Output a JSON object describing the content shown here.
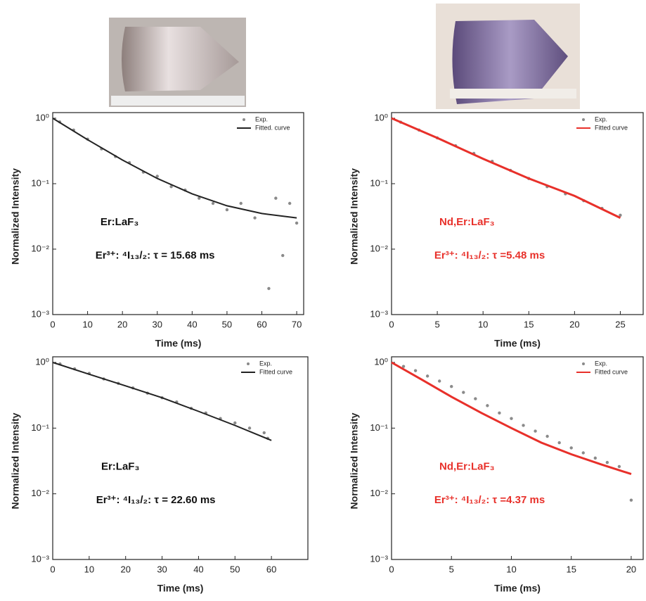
{
  "chart_data": [
    {
      "type": "scatter-fit",
      "xlabel": "Time (ms)",
      "ylabel": "Normalized Intensity",
      "xlim": [
        0,
        72
      ],
      "xticks": [
        0,
        10,
        20,
        30,
        40,
        50,
        60,
        70
      ],
      "ylim": [
        0.001,
        1
      ],
      "ylog": true,
      "yticks": [
        {
          "value": 1,
          "label": "10⁰"
        },
        {
          "value": 0.1,
          "label": "10⁻¹"
        },
        {
          "value": 0.01,
          "label": "10⁻²"
        },
        {
          "value": 0.001,
          "label": "10⁻³"
        }
      ],
      "legend": "top-right",
      "annotation_color": "#111111",
      "annotations": [
        "Er:LaF₃",
        "Er³⁺: ⁴I₁₃/₂: τ = 15.68 ms"
      ],
      "series": [
        {
          "name": "Exp.",
          "kind": "scatter",
          "color": "#8a8a8a",
          "x": [
            2,
            6,
            10,
            14,
            18,
            22,
            26,
            30,
            34,
            38,
            42,
            46,
            50,
            54,
            58,
            62,
            64,
            66,
            68,
            70
          ],
          "values": [
            0.88,
            0.66,
            0.48,
            0.34,
            0.26,
            0.21,
            0.15,
            0.13,
            0.09,
            0.08,
            0.06,
            0.05,
            0.04,
            0.05,
            0.03,
            0.0025,
            0.06,
            0.008,
            0.05,
            0.025
          ]
        },
        {
          "name": "Fitted. curve",
          "kind": "line",
          "color": "#222222",
          "x": [
            0,
            10,
            20,
            30,
            40,
            50,
            60,
            70
          ],
          "values": [
            1,
            0.47,
            0.23,
            0.12,
            0.07,
            0.046,
            0.035,
            0.03
          ]
        }
      ]
    },
    {
      "type": "scatter-fit",
      "xlabel": "Time (ms)",
      "ylabel": "Normalized Intensity",
      "xlim": [
        0,
        27.5
      ],
      "xticks": [
        0,
        5,
        10,
        15,
        20,
        25
      ],
      "ylim": [
        0.001,
        1
      ],
      "ylog": true,
      "yticks": [
        {
          "value": 1,
          "label": "10⁰"
        },
        {
          "value": 0.1,
          "label": "10⁻¹"
        },
        {
          "value": 0.01,
          "label": "10⁻²"
        },
        {
          "value": 0.001,
          "label": "10⁻³"
        }
      ],
      "legend": "top-right",
      "annotation_color": "#e8302a",
      "annotations": [
        "Nd,Er:LaF₃",
        "Er³⁺: ⁴I₁₃/₂: τ =5.48 ms"
      ],
      "series": [
        {
          "name": "Exp.",
          "kind": "scatter",
          "color": "#8a8a8a",
          "x": [
            1,
            3,
            5,
            7,
            9,
            11,
            13,
            15,
            17,
            19,
            21,
            23,
            25
          ],
          "values": [
            0.87,
            0.66,
            0.5,
            0.38,
            0.29,
            0.22,
            0.16,
            0.12,
            0.09,
            0.07,
            0.055,
            0.042,
            0.033
          ]
        },
        {
          "name": "Fitted curve",
          "kind": "line",
          "color": "#e8302a",
          "x": [
            0,
            5,
            10,
            15,
            20,
            25
          ],
          "values": [
            1,
            0.5,
            0.24,
            0.12,
            0.065,
            0.03
          ]
        }
      ]
    },
    {
      "type": "scatter-fit",
      "xlabel": "Time (ms)",
      "ylabel": "Normalized Intensity",
      "xlim": [
        0,
        70
      ],
      "xticks": [
        0,
        10,
        20,
        30,
        40,
        50,
        60
      ],
      "ylim": [
        0.001,
        1
      ],
      "ylog": true,
      "yticks": [
        {
          "value": 1,
          "label": "10⁰"
        },
        {
          "value": 0.1,
          "label": "10⁻¹"
        },
        {
          "value": 0.01,
          "label": "10⁻²"
        },
        {
          "value": 0.001,
          "label": "10⁻³"
        }
      ],
      "legend": "top-right",
      "annotation_color": "#111111",
      "annotations": [
        "Er:LaF₃",
        "Er³⁺: ⁴I₁₃/₂: τ = 22.60 ms"
      ],
      "series": [
        {
          "name": "Exp.",
          "kind": "scatter",
          "color": "#8a8a8a",
          "x": [
            2,
            6,
            10,
            14,
            18,
            22,
            26,
            30,
            34,
            38,
            42,
            46,
            50,
            54,
            58,
            59
          ],
          "values": [
            0.95,
            0.8,
            0.68,
            0.56,
            0.48,
            0.41,
            0.34,
            0.29,
            0.25,
            0.2,
            0.17,
            0.14,
            0.12,
            0.1,
            0.085,
            0.07
          ]
        },
        {
          "name": "Fitted curve",
          "kind": "line",
          "color": "#222222",
          "x": [
            0,
            10,
            20,
            30,
            40,
            50,
            60
          ],
          "values": [
            1,
            0.66,
            0.44,
            0.29,
            0.18,
            0.11,
            0.065
          ]
        }
      ]
    },
    {
      "type": "scatter-fit",
      "xlabel": "Time (ms)",
      "ylabel": "Normalized Intensity",
      "xlim": [
        0,
        21
      ],
      "xticks": [
        0,
        5,
        10,
        15,
        20
      ],
      "ylim": [
        0.001,
        1
      ],
      "ylog": true,
      "yticks": [
        {
          "value": 1,
          "label": "10⁰"
        },
        {
          "value": 0.1,
          "label": "10⁻¹"
        },
        {
          "value": 0.01,
          "label": "10⁻²"
        },
        {
          "value": 0.001,
          "label": "10⁻³"
        }
      ],
      "legend": "top-right",
      "annotation_color": "#e8302a",
      "annotations": [
        "Nd,Er:LaF₃",
        "Er³⁺: ⁴I₁₃/₂: τ =4.37 ms"
      ],
      "series": [
        {
          "name": "Exp.",
          "kind": "scatter",
          "color": "#8a8a8a",
          "x": [
            1,
            2,
            3,
            4,
            5,
            6,
            7,
            8,
            9,
            10,
            11,
            12,
            13,
            14,
            15,
            16,
            17,
            18,
            19,
            20
          ],
          "values": [
            0.87,
            0.75,
            0.62,
            0.52,
            0.43,
            0.35,
            0.28,
            0.22,
            0.17,
            0.14,
            0.11,
            0.09,
            0.075,
            0.06,
            0.05,
            0.042,
            0.035,
            0.03,
            0.026,
            0.008
          ]
        },
        {
          "name": "Fitted curve",
          "kind": "line",
          "color": "#e8302a",
          "x": [
            0,
            2.5,
            5,
            7.5,
            10,
            12.5,
            15,
            17.5,
            20
          ],
          "values": [
            1,
            0.55,
            0.3,
            0.17,
            0.1,
            0.06,
            0.04,
            0.028,
            0.02
          ]
        }
      ]
    }
  ]
}
